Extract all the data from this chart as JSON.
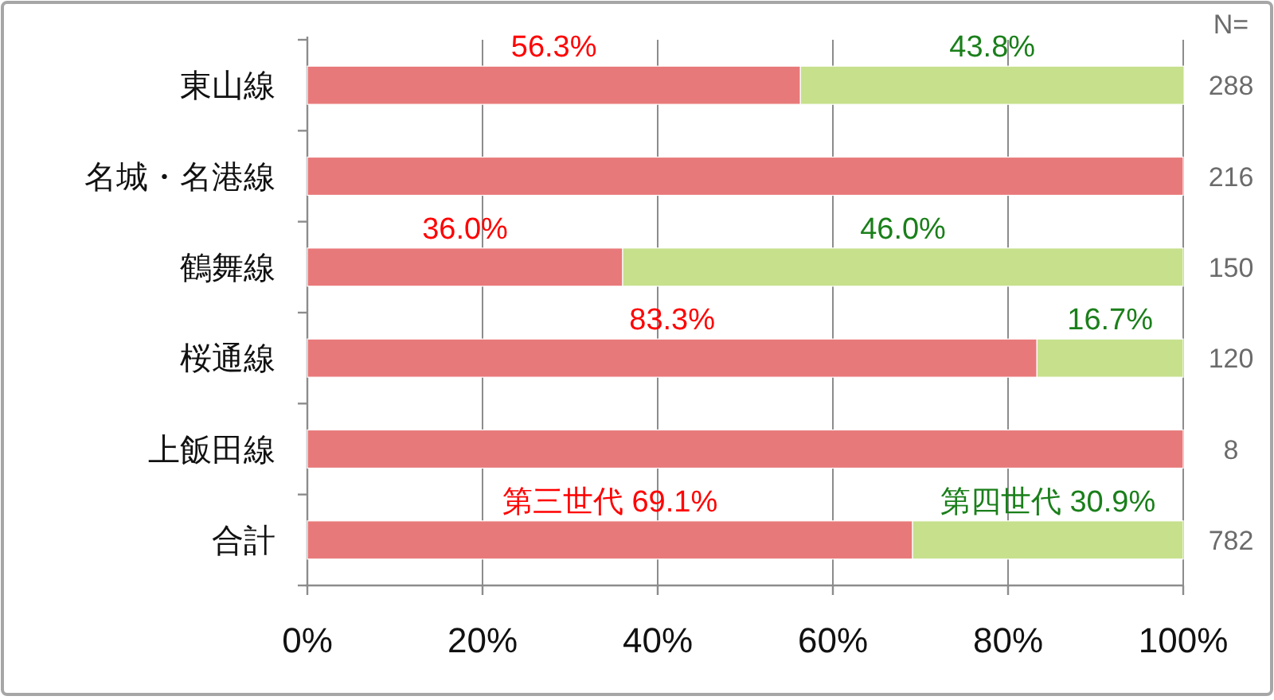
{
  "chart_data": {
    "type": "bar",
    "orientation": "horizontal",
    "stacked": true,
    "categories": [
      "東山線",
      "名城・名港線",
      "鶴舞線",
      "桜通線",
      "上飯田線",
      "合計"
    ],
    "series": [
      {
        "name": "第三世代",
        "color": "#e8797a",
        "values": [
          56.3,
          100,
          36.0,
          83.3,
          100,
          69.1
        ],
        "value_labels": [
          "56.3%",
          null,
          "36.0%",
          "83.3%",
          null,
          "69.1%"
        ]
      },
      {
        "name": "第四世代",
        "color": "#c6e08c",
        "values": [
          43.8,
          0,
          64.0,
          16.7,
          0,
          30.9
        ],
        "value_labels": [
          "43.8%",
          null,
          null,
          "16.7%",
          null,
          "30.9%"
        ]
      }
    ],
    "xlim": [
      0,
      100
    ],
    "xticks": [
      {
        "value": 0,
        "label": "0%"
      },
      {
        "value": 20,
        "label": "20%"
      },
      {
        "value": 40,
        "label": "40%"
      },
      {
        "value": 60,
        "label": "60%"
      },
      {
        "value": 80,
        "label": "80%"
      },
      {
        "value": 100,
        "label": "100%"
      }
    ],
    "grid": "x",
    "legend": false,
    "annotations": [
      "N=",
      "288",
      "216",
      "150",
      "120",
      "8",
      "782",
      "46.0%"
    ]
  }
}
